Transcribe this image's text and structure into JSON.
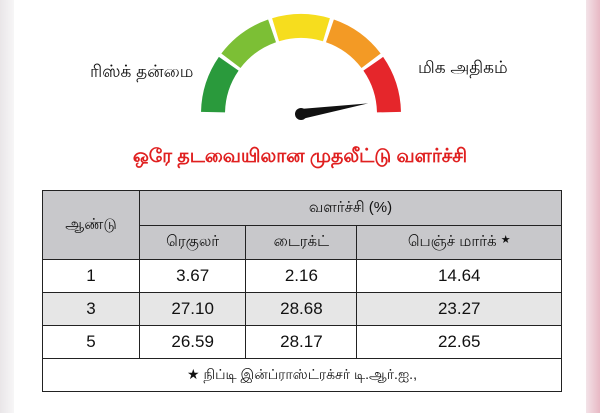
{
  "gauge": {
    "left_label": "ரிஸ்க் தன்மை",
    "right_label": "மிக அதிகம்",
    "segment_colors": [
      "#2a9a3c",
      "#7cbf35",
      "#f6dd1e",
      "#f39a25",
      "#e5262b"
    ],
    "needle_level_fraction": 0.95
  },
  "title": "ஒரே தடவையிலான முதலீட்டு வளர்ச்சி",
  "table": {
    "year_header": "ஆண்டு",
    "growth_header": "வளர்ச்சி (%)",
    "sub_headers": [
      "ரெகுலர்",
      "டைரக்ட்",
      "பெஞ்ச் மார்க்"
    ],
    "benchmark_marker": "★",
    "rows": [
      {
        "year": "1",
        "regular": "3.67",
        "direct": "2.16",
        "benchmark": "14.64"
      },
      {
        "year": "3",
        "regular": "27.10",
        "direct": "28.68",
        "benchmark": "23.27"
      },
      {
        "year": "5",
        "regular": "26.59",
        "direct": "28.17",
        "benchmark": "22.65"
      }
    ],
    "footnote": "★ நிப்டி இன்ப்ராஸ்ட்ரக்சர் டி.ஆர்.ஐ.,"
  }
}
